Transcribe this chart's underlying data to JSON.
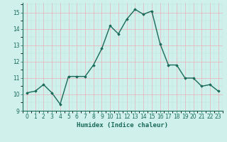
{
  "x": [
    0,
    1,
    2,
    3,
    4,
    5,
    6,
    7,
    8,
    9,
    10,
    11,
    12,
    13,
    14,
    15,
    16,
    17,
    18,
    19,
    20,
    21,
    22,
    23
  ],
  "y": [
    10.1,
    10.2,
    10.6,
    10.1,
    9.4,
    11.1,
    11.1,
    11.1,
    11.8,
    12.8,
    14.2,
    13.7,
    14.6,
    15.2,
    14.9,
    15.1,
    13.1,
    11.8,
    11.8,
    11.0,
    11.0,
    10.5,
    10.6,
    10.2
  ],
  "line_color": "#1a6b5a",
  "marker": "D",
  "marker_size": 1.8,
  "bg_color": "#cff0eb",
  "grid_color_major": "#b0d8d2",
  "grid_color_minor": "#c0e5e0",
  "xlabel": "Humidex (Indice chaleur)",
  "ylim": [
    9,
    15.6
  ],
  "xlim": [
    -0.5,
    23.5
  ],
  "yticks": [
    9,
    10,
    11,
    12,
    13,
    14,
    15
  ],
  "xticks": [
    0,
    1,
    2,
    3,
    4,
    5,
    6,
    7,
    8,
    9,
    10,
    11,
    12,
    13,
    14,
    15,
    16,
    17,
    18,
    19,
    20,
    21,
    22,
    23
  ],
  "tick_fontsize": 5.5,
  "xlabel_fontsize": 6.5,
  "line_width": 1.0
}
